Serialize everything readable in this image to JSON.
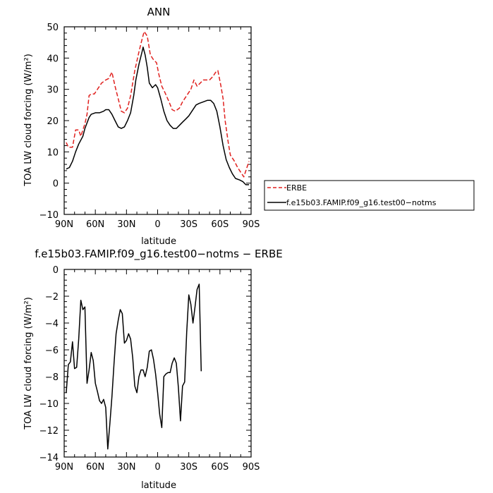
{
  "chart_data": [
    {
      "type": "line",
      "title": "ANN",
      "xlabel": "latitude",
      "ylabel": "TOA LW cloud forcing (W/m²)",
      "ylim": [
        -10,
        50
      ],
      "yticks": [
        -10,
        0,
        10,
        20,
        30,
        40,
        50
      ],
      "xlim": [
        90,
        -90
      ],
      "xticks": [
        {
          "value": 90,
          "label": "90N"
        },
        {
          "value": 60,
          "label": "60N"
        },
        {
          "value": 30,
          "label": "30N"
        },
        {
          "value": 0,
          "label": "0"
        },
        {
          "value": -30,
          "label": "30S"
        },
        {
          "value": -60,
          "label": "60S"
        },
        {
          "value": -90,
          "label": "90S"
        }
      ],
      "legend_position": "right",
      "series": [
        {
          "name": "ERBE",
          "color": "#e0201e",
          "dash": "dashed",
          "points": [
            [
              88,
              13
            ],
            [
              86,
              11.5
            ],
            [
              82,
              11.5
            ],
            [
              79,
              17
            ],
            [
              76,
              17
            ],
            [
              74,
              15
            ],
            [
              70,
              19
            ],
            [
              68,
              22
            ],
            [
              66,
              28
            ],
            [
              64,
              28.5
            ],
            [
              61,
              28.5
            ],
            [
              58,
              30
            ],
            [
              54,
              32
            ],
            [
              50,
              33
            ],
            [
              47,
              33.5
            ],
            [
              44,
              35.5
            ],
            [
              41,
              31
            ],
            [
              38,
              27
            ],
            [
              35,
              23
            ],
            [
              32,
              22.5
            ],
            [
              29,
              24
            ],
            [
              26,
              28
            ],
            [
              22,
              36
            ],
            [
              18,
              42
            ],
            [
              15,
              46
            ],
            [
              13,
              48.5
            ],
            [
              10,
              47
            ],
            [
              7,
              41
            ],
            [
              4,
              39.5
            ],
            [
              1,
              38.5
            ],
            [
              -1,
              35
            ],
            [
              -4,
              31
            ],
            [
              -7,
              29
            ],
            [
              -11,
              26
            ],
            [
              -14,
              23.5
            ],
            [
              -17,
              23
            ],
            [
              -21,
              24
            ],
            [
              -24,
              26
            ],
            [
              -28,
              28
            ],
            [
              -32,
              30
            ],
            [
              -35,
              33
            ],
            [
              -38,
              31
            ],
            [
              -41,
              32
            ],
            [
              -44,
              33
            ],
            [
              -47,
              33
            ],
            [
              -50,
              33
            ],
            [
              -53,
              34
            ],
            [
              -56,
              35.5
            ],
            [
              -58,
              36
            ],
            [
              -61,
              31
            ],
            [
              -63,
              27
            ],
            [
              -65,
              20
            ],
            [
              -68,
              13
            ],
            [
              -70,
              9
            ],
            [
              -74,
              7
            ],
            [
              -77,
              5
            ],
            [
              -80,
              3.5
            ],
            [
              -83,
              2
            ],
            [
              -86,
              5
            ],
            [
              -88,
              7
            ]
          ]
        },
        {
          "name": "f.e15b03.FAMIP.f09_g16.test00−notms",
          "color": "#000000",
          "dash": "solid",
          "points": [
            [
              88,
              4.5
            ],
            [
              85,
              5
            ],
            [
              82,
              7
            ],
            [
              79,
              10
            ],
            [
              76,
              12.5
            ],
            [
              72,
              15
            ],
            [
              70,
              17.5
            ],
            [
              66,
              21
            ],
            [
              64,
              22
            ],
            [
              60,
              22.5
            ],
            [
              56,
              22.5
            ],
            [
              52,
              23
            ],
            [
              50,
              23.5
            ],
            [
              47,
              23.5
            ],
            [
              44,
              22
            ],
            [
              41,
              20
            ],
            [
              38,
              18
            ],
            [
              35,
              17.5
            ],
            [
              32,
              18
            ],
            [
              29,
              20
            ],
            [
              26,
              22.5
            ],
            [
              23,
              28
            ],
            [
              21,
              33
            ],
            [
              18,
              38
            ],
            [
              15,
              42
            ],
            [
              14,
              43.5
            ],
            [
              12,
              41
            ],
            [
              10,
              37
            ],
            [
              8,
              32
            ],
            [
              5,
              30.5
            ],
            [
              2,
              31.5
            ],
            [
              0,
              30.5
            ],
            [
              -3,
              27
            ],
            [
              -6,
              23
            ],
            [
              -9,
              20
            ],
            [
              -12,
              18.5
            ],
            [
              -15,
              17.5
            ],
            [
              -18,
              17.5
            ],
            [
              -21,
              18.5
            ],
            [
              -24,
              19.5
            ],
            [
              -27,
              20.5
            ],
            [
              -30,
              21.5
            ],
            [
              -33,
              23
            ],
            [
              -37,
              25
            ],
            [
              -40,
              25.5
            ],
            [
              -44,
              26
            ],
            [
              -48,
              26.5
            ],
            [
              -51,
              26.5
            ],
            [
              -54,
              25.5
            ],
            [
              -57,
              23
            ],
            [
              -60,
              18
            ],
            [
              -63,
              12
            ],
            [
              -66,
              7.5
            ],
            [
              -69,
              5
            ],
            [
              -72,
              3
            ],
            [
              -75,
              1.5
            ],
            [
              -79,
              1
            ],
            [
              -82,
              0.5
            ],
            [
              -85,
              -0.5
            ],
            [
              -88,
              -0.5
            ]
          ]
        }
      ]
    },
    {
      "type": "line",
      "title": "f.e15b03.FAMIP.f09_g16.test00−notms − ERBE",
      "xlabel": "latitude",
      "ylabel": "TOA LW cloud forcing (W/m²)",
      "ylim": [
        -14,
        0
      ],
      "yticks": [
        -14,
        -12,
        -10,
        -8,
        -6,
        -4,
        -2,
        0
      ],
      "xlim": [
        90,
        -90
      ],
      "xticks": [
        {
          "value": 90,
          "label": "90N"
        },
        {
          "value": 60,
          "label": "60N"
        },
        {
          "value": 30,
          "label": "30N"
        },
        {
          "value": 0,
          "label": "0"
        },
        {
          "value": -30,
          "label": "30S"
        },
        {
          "value": -60,
          "label": "60S"
        },
        {
          "value": -90,
          "label": "90S"
        }
      ],
      "series": [
        {
          "color": "#000000",
          "dash": "solid",
          "points": [
            [
              88,
              -9.2
            ],
            [
              86,
              -7.1
            ],
            [
              84,
              -6.9
            ],
            [
              82,
              -5.4
            ],
            [
              80,
              -7.4
            ],
            [
              78,
              -7.3
            ],
            [
              76,
              -5.2
            ],
            [
              74,
              -2.3
            ],
            [
              72,
              -3
            ],
            [
              70,
              -2.8
            ],
            [
              68,
              -8.5
            ],
            [
              66,
              -7.5
            ],
            [
              64,
              -6.2
            ],
            [
              62,
              -6.8
            ],
            [
              60,
              -8.5
            ],
            [
              58,
              -9.1
            ],
            [
              56,
              -9.8
            ],
            [
              54,
              -10
            ],
            [
              52,
              -9.7
            ],
            [
              50,
              -10.3
            ],
            [
              48,
              -13.4
            ],
            [
              46,
              -11.5
            ],
            [
              44,
              -9.5
            ],
            [
              42,
              -7
            ],
            [
              40,
              -4.8
            ],
            [
              38,
              -3.8
            ],
            [
              36,
              -3
            ],
            [
              34,
              -3.3
            ],
            [
              32,
              -5.5
            ],
            [
              30,
              -5.3
            ],
            [
              28,
              -4.8
            ],
            [
              26,
              -5.2
            ],
            [
              24,
              -6.6
            ],
            [
              22,
              -8.7
            ],
            [
              20,
              -9.2
            ],
            [
              18,
              -8
            ],
            [
              16,
              -7.5
            ],
            [
              14,
              -7.5
            ],
            [
              12,
              -8
            ],
            [
              10,
              -7.3
            ],
            [
              8,
              -6.1
            ],
            [
              6,
              -6
            ],
            [
              4,
              -6.7
            ],
            [
              2,
              -7.8
            ],
            [
              0,
              -9.2
            ],
            [
              -2,
              -10.8
            ],
            [
              -4,
              -11.8
            ],
            [
              -6,
              -8
            ],
            [
              -8,
              -7.8
            ],
            [
              -10,
              -7.7
            ],
            [
              -12,
              -7.7
            ],
            [
              -14,
              -7
            ],
            [
              -16,
              -6.6
            ],
            [
              -18,
              -7
            ],
            [
              -20,
              -8.8
            ],
            [
              -22,
              -11.3
            ],
            [
              -24,
              -8.7
            ],
            [
              -26,
              -8.4
            ],
            [
              -28,
              -4.7
            ],
            [
              -30,
              -1.9
            ],
            [
              -32,
              -2.6
            ],
            [
              -34,
              -4
            ],
            [
              -36,
              -2.8
            ],
            [
              -38,
              -1.5
            ],
            [
              -40,
              -1.1
            ],
            [
              -42,
              -7.6
            ]
          ]
        }
      ]
    }
  ]
}
